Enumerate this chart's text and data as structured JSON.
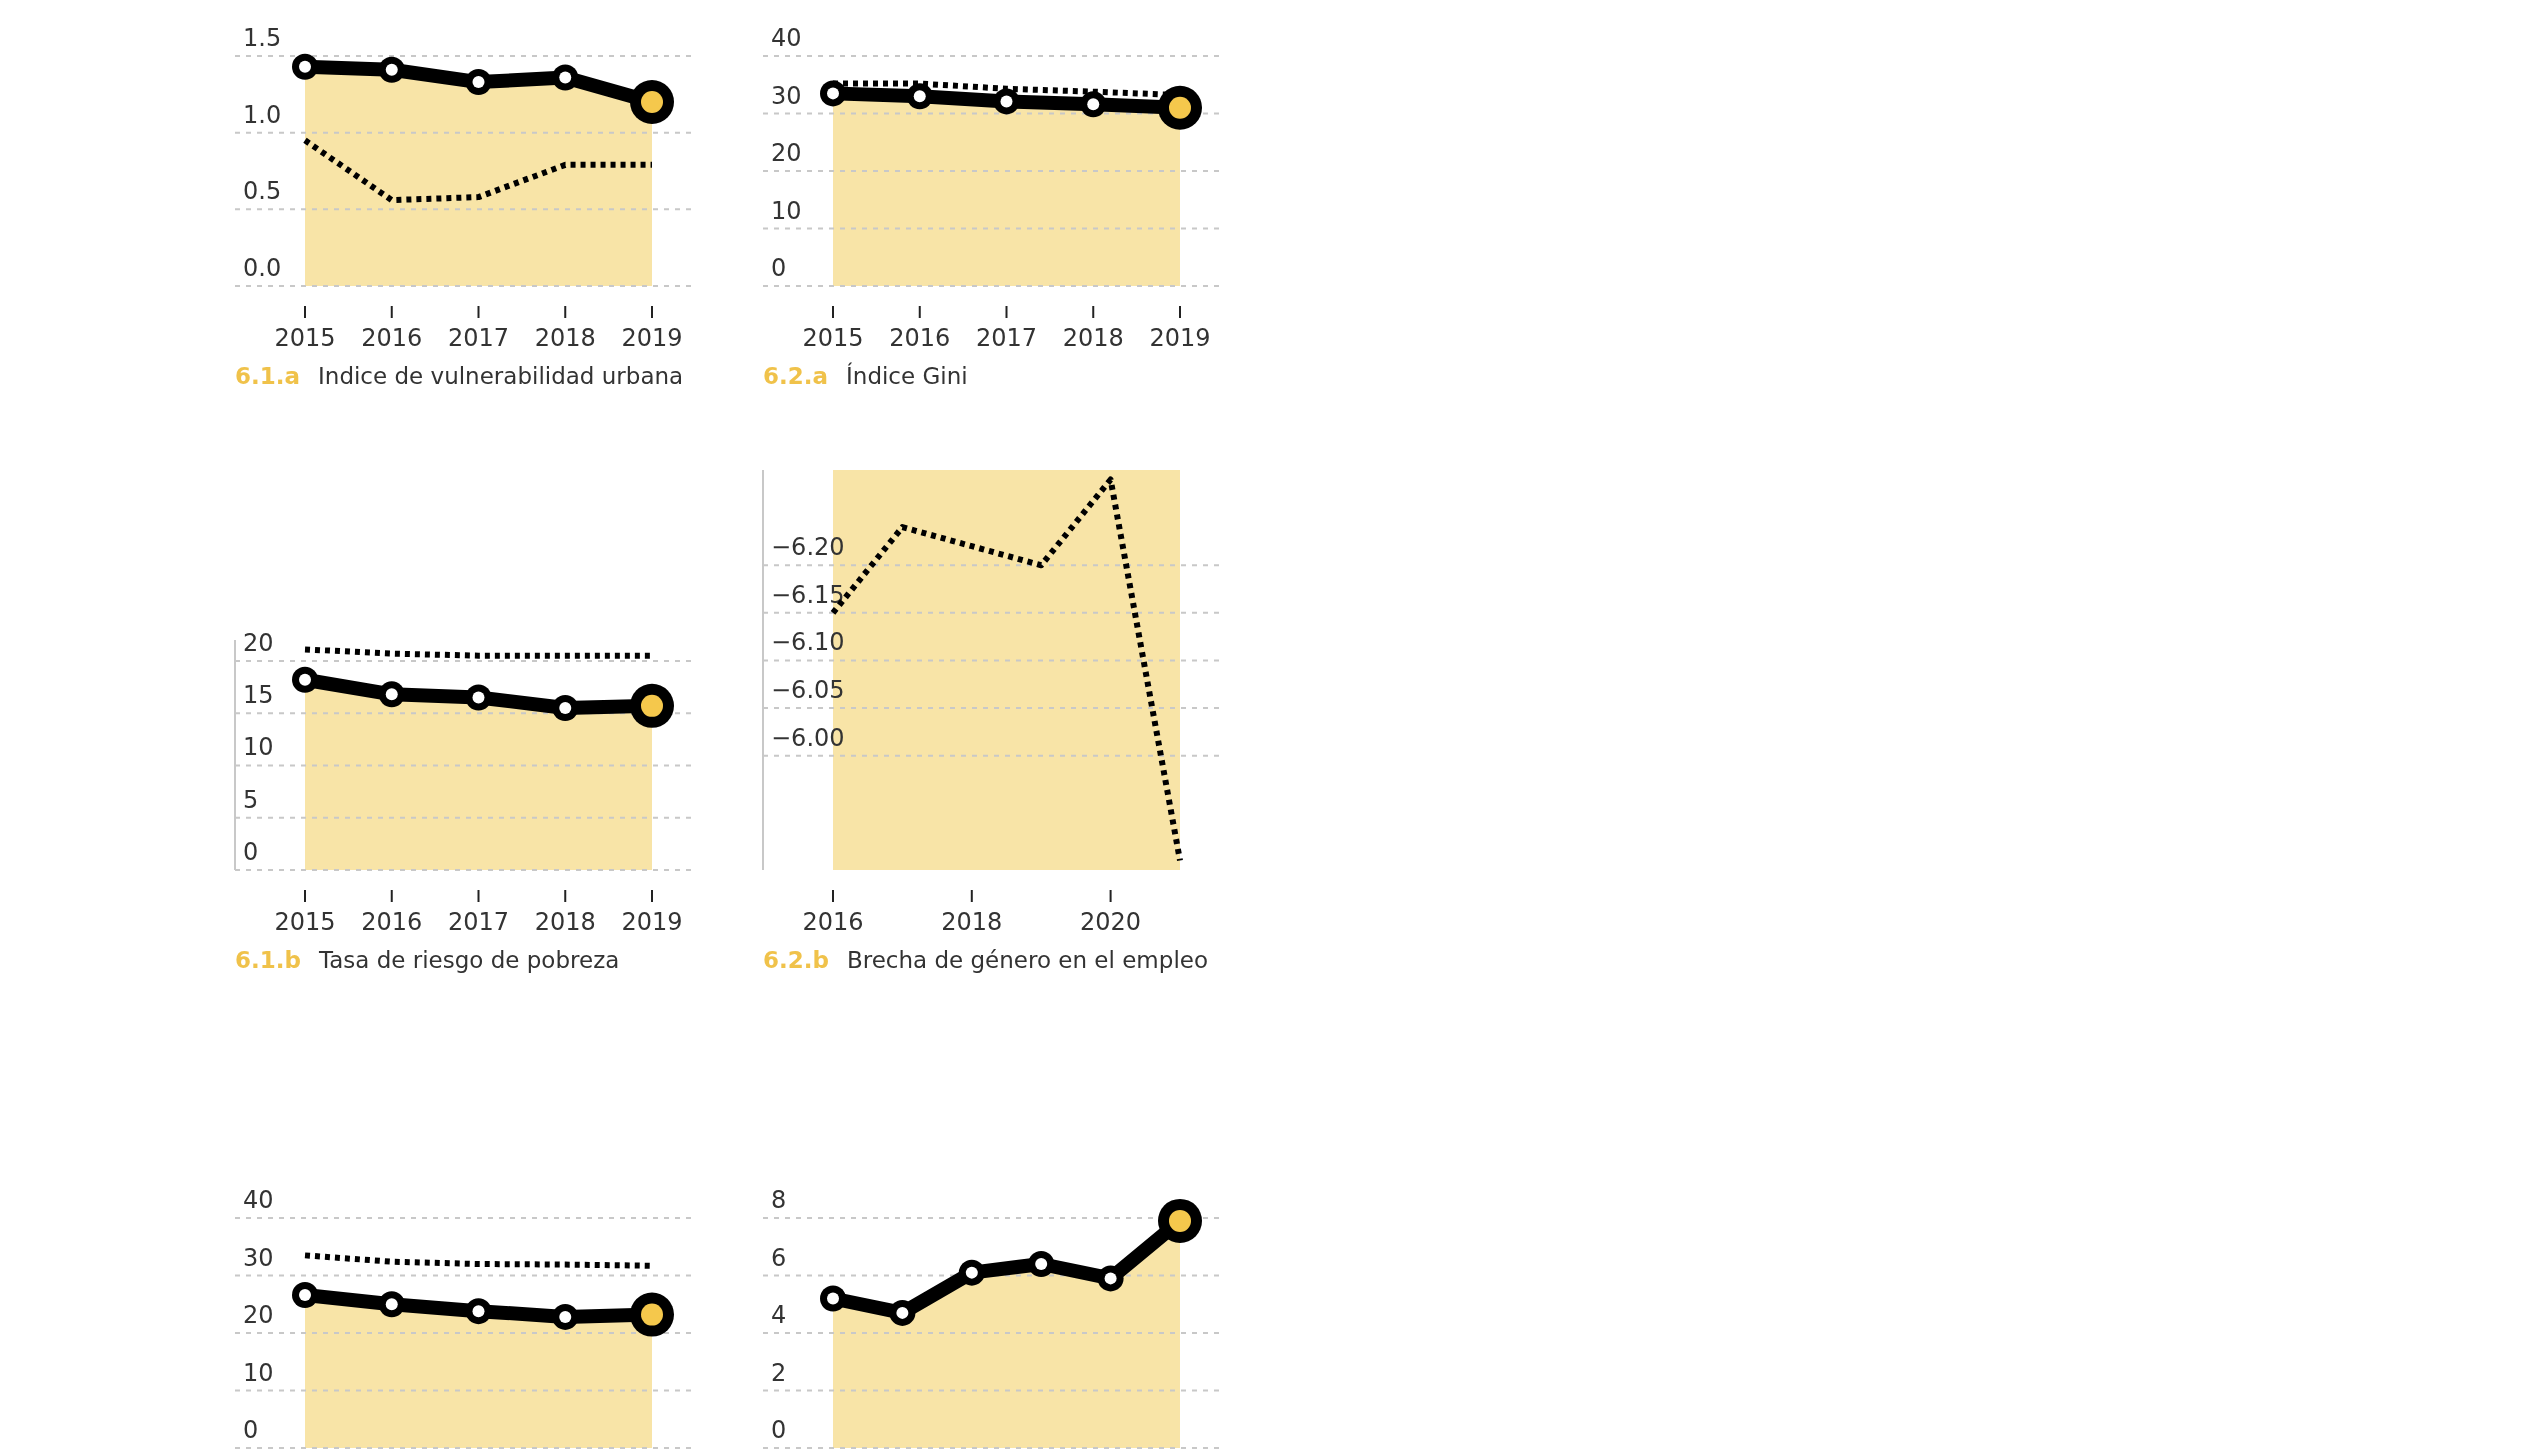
{
  "chart_data": [
    {
      "type": "line",
      "title": "Indice de vulnerabilidad urbana",
      "subtitle": "6.1.a",
      "categories": [
        "2015",
        "2016",
        "2017",
        "2018",
        "2019"
      ],
      "ylim": [
        0,
        1.5
      ],
      "yticks": [
        {
          "value": 0,
          "label": "0.0"
        },
        0.5,
        {
          "value": 1,
          "label": "1.0"
        },
        1.5
      ],
      "grid": "y",
      "series": [
        {
          "type": "area",
          "color": "#f8e4a7",
          "marker": "circle",
          "line_style": "solid",
          "colors": [
            "#ffffff",
            "#ffffff",
            "#ffffff",
            "#ffffff",
            "#f5c84c"
          ],
          "values": [
            1.43,
            1.41,
            1.33,
            1.36,
            1.2
          ]
        },
        {
          "color": "#000000",
          "line_style": "dotted",
          "values": [
            0.95,
            0.56,
            0.58,
            0.79,
            0.79
          ]
        }
      ]
    },
    {
      "type": "line",
      "title": "Índice Gini",
      "subtitle": "6.2.a",
      "categories": [
        "2015",
        "2016",
        "2017",
        "2018",
        "2019"
      ],
      "ylim": [
        0,
        40
      ],
      "yticks": [
        0,
        10,
        20,
        30,
        40
      ],
      "grid": "y",
      "series": [
        {
          "type": "area",
          "color": "#f8e4a7",
          "marker": "circle",
          "line_style": "solid",
          "colors": [
            "#ffffff",
            "#ffffff",
            "#ffffff",
            "#ffffff",
            "#f5c84c"
          ],
          "values": [
            33.5,
            33.0,
            32.1,
            31.6,
            31.0
          ]
        },
        {
          "color": "#000000",
          "line_style": "dotted",
          "values": [
            35.2,
            35.2,
            34.3,
            33.8,
            33.2
          ]
        }
      ]
    },
    {
      "type": "line",
      "title": "Tasa de riesgo de pobreza",
      "subtitle": "6.1.b",
      "categories": [
        "2015",
        "2016",
        "2017",
        "2018",
        "2019"
      ],
      "ylim": [
        0,
        22
      ],
      "yticks": [
        0,
        5,
        10,
        15,
        20
      ],
      "grid": "y",
      "series": [
        {
          "type": "area",
          "color": "#f8e4a7",
          "marker": "circle",
          "line_style": "solid",
          "colors": [
            "#ffffff",
            "#ffffff",
            "#ffffff",
            "#ffffff",
            "#f5c84c"
          ],
          "values": [
            18.2,
            16.8,
            16.5,
            15.5,
            15.7
          ]
        },
        {
          "color": "#000000",
          "line_style": "dotted",
          "values": [
            21.1,
            20.7,
            20.5,
            20.5,
            20.5
          ]
        }
      ]
    },
    {
      "type": "line",
      "title": "Brecha de género en el empleo",
      "subtitle": "6.2.b",
      "x": [
        2016,
        2017,
        2018,
        2019,
        2020,
        2021
      ],
      "xlim": [
        2016,
        2021
      ],
      "xticks": [
        2016,
        2018,
        2020
      ],
      "ylim": [
        -5.88,
        -6.3
      ],
      "yticks": [
        {
          "value": -6.2,
          "label": "−6.20"
        },
        {
          "value": -6.15,
          "label": "−6.15"
        },
        {
          "value": -6.1,
          "label": "−6.10"
        },
        {
          "value": -6.05,
          "label": "−6.05"
        },
        {
          "value": -6.0,
          "label": "−6.00"
        }
      ],
      "grid": "y",
      "bands": [
        {
          "axis": "x",
          "from": 2016,
          "to": 2021,
          "color": "#f8e4a7"
        }
      ],
      "series": [
        {
          "color": "#000000",
          "line_style": "dotted",
          "values": [
            -6.15,
            -6.24,
            -6.22,
            -6.2,
            -6.29,
            -5.89
          ]
        }
      ]
    },
    {
      "type": "line",
      "categories": [
        null,
        null,
        null,
        null,
        null
      ],
      "ylim": [
        0,
        40
      ],
      "yticks": [
        0,
        10,
        20,
        30,
        40
      ],
      "grid": "y",
      "tick_labels": "y",
      "series": [
        {
          "type": "area",
          "color": "#f8e4a7",
          "marker": "circle",
          "line_style": "solid",
          "colors": [
            "#ffffff",
            "#ffffff",
            "#ffffff",
            "#ffffff",
            "#f5c84c"
          ],
          "values": [
            26.6,
            25.0,
            23.8,
            22.8,
            23.2
          ]
        },
        {
          "color": "#000000",
          "line_style": "dotted",
          "values": [
            33.5,
            32.4,
            32.0,
            31.9,
            31.7
          ]
        }
      ]
    },
    {
      "type": "line",
      "categories": [
        null,
        null,
        null,
        null,
        null,
        null
      ],
      "ylim": [
        0,
        8
      ],
      "yticks": [
        0,
        2,
        4,
        6,
        8
      ],
      "grid": "y",
      "tick_labels": "y",
      "series": [
        {
          "type": "area",
          "color": "#f8e4a7",
          "marker": "circle",
          "line_style": "solid",
          "colors": [
            "#ffffff",
            "#ffffff",
            "#ffffff",
            "#ffffff",
            "#ffffff",
            "#f5c84c"
          ],
          "values": [
            5.2,
            4.7,
            6.1,
            6.4,
            5.9,
            7.9
          ]
        }
      ]
    }
  ]
}
